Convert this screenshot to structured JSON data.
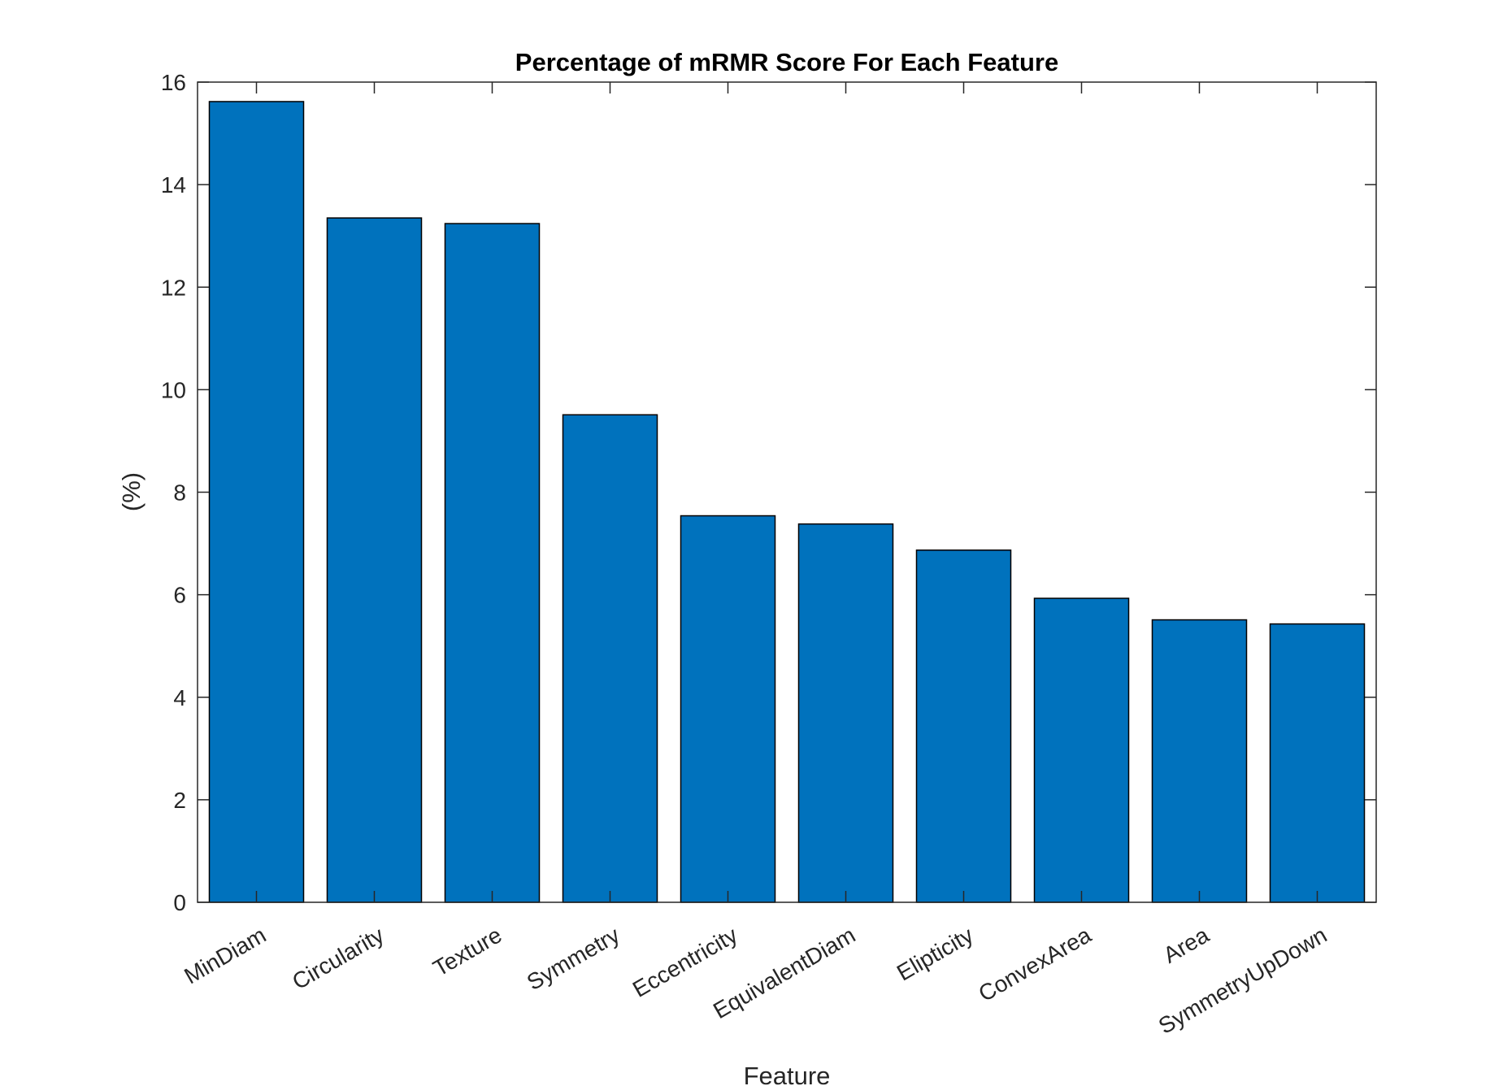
{
  "chart_data": {
    "type": "bar",
    "title": "Percentage of mRMR Score For Each Feature",
    "xlabel": "Feature",
    "ylabel": "(%)",
    "ylim": [
      0,
      16
    ],
    "yticks": [
      0,
      2,
      4,
      6,
      8,
      10,
      12,
      14,
      16
    ],
    "categories": [
      "MinDiam",
      "Circularity",
      "Texture",
      "Symmetry",
      "Eccentricity",
      "EquivalentDiam",
      "Elipticity",
      "ConvexArea",
      "Area",
      "SymmetryUpDown"
    ],
    "values": [
      15.62,
      13.35,
      13.24,
      9.51,
      7.54,
      7.38,
      6.87,
      5.93,
      5.51,
      5.43
    ],
    "bar_color": "#0072BD",
    "grid": false,
    "legend": "none"
  }
}
